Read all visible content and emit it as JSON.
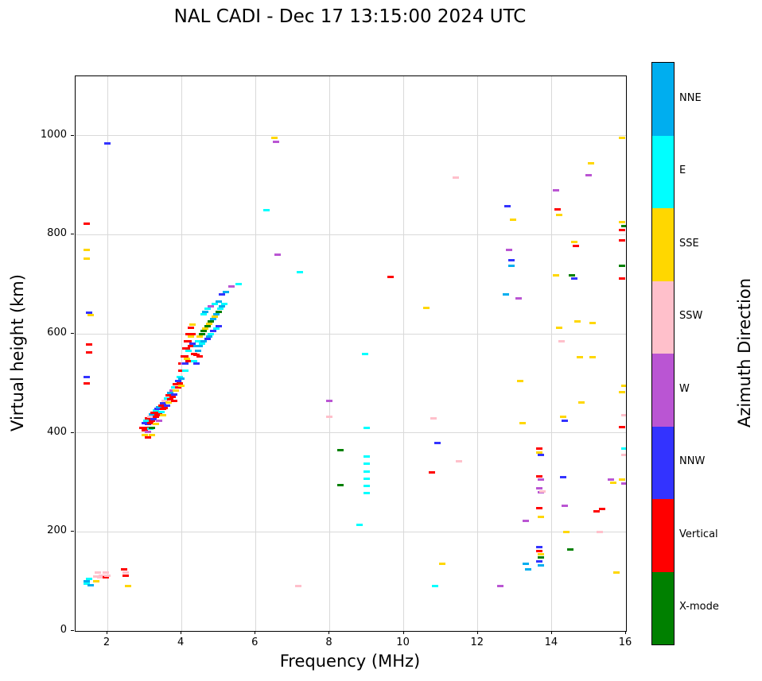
{
  "title": "NAL CADI - Dec 17 13:15:00 2024 UTC",
  "chart_data": {
    "type": "scatter",
    "title": "NAL CADI - Dec 17 13:15:00 2024 UTC",
    "xlabel": "Frequency (MHz)",
    "ylabel": "Virtual height (km)",
    "colorbar_label": "Azimuth Direction",
    "xlim": [
      1.14,
      16
    ],
    "ylim": [
      0,
      1120
    ],
    "xticks": [
      2,
      4,
      6,
      8,
      10,
      12,
      14,
      16
    ],
    "yticks": [
      0,
      200,
      400,
      600,
      800,
      1000
    ],
    "grid": true,
    "marker": "horizontal-dash",
    "legend_position": "right-colorbar",
    "legend": [
      {
        "label": "NNE",
        "color": "#00AEEF"
      },
      {
        "label": "E",
        "color": "#00FFFF"
      },
      {
        "label": "SSE",
        "color": "#FFD700"
      },
      {
        "label": "SSW",
        "color": "#FFC0CB"
      },
      {
        "label": "W",
        "color": "#BA55D3"
      },
      {
        "label": "NNW",
        "color": "#3333FF"
      },
      {
        "label": "Vertical",
        "color": "#FF0000"
      },
      {
        "label": "X-mode",
        "color": "#008000"
      }
    ],
    "points": [
      [
        1.45,
        100,
        "NNE"
      ],
      [
        1.45,
        95,
        "E"
      ],
      [
        1.5,
        105,
        "E"
      ],
      [
        1.55,
        92,
        "NNE"
      ],
      [
        1.7,
        110,
        "SSW"
      ],
      [
        1.7,
        100,
        "SSE"
      ],
      [
        1.75,
        118,
        "SSW"
      ],
      [
        1.8,
        108,
        "SSW"
      ],
      [
        1.85,
        112,
        "SSW"
      ],
      [
        1.95,
        118,
        "SSW"
      ],
      [
        1.95,
        108,
        "Vertical"
      ],
      [
        2.0,
        112,
        "SSW"
      ],
      [
        2.45,
        125,
        "Vertical"
      ],
      [
        2.5,
        118,
        "SSW"
      ],
      [
        2.5,
        112,
        "Vertical"
      ],
      [
        2.55,
        90,
        "SSE"
      ],
      [
        1.45,
        822,
        "Vertical"
      ],
      [
        1.45,
        770,
        "SSE"
      ],
      [
        1.45,
        752,
        "SSE"
      ],
      [
        1.5,
        642,
        "NNW"
      ],
      [
        1.55,
        638,
        "SSE"
      ],
      [
        1.5,
        578,
        "Vertical"
      ],
      [
        1.5,
        562,
        "Vertical"
      ],
      [
        1.45,
        512,
        "NNW"
      ],
      [
        1.45,
        500,
        "Vertical"
      ],
      [
        2.0,
        985,
        "NNW"
      ],
      [
        2.95,
        410,
        "Vertical"
      ],
      [
        3.0,
        420,
        "NNW"
      ],
      [
        3.0,
        405,
        "Vertical"
      ],
      [
        3.0,
        395,
        "SSE"
      ],
      [
        3.05,
        425,
        "E"
      ],
      [
        3.05,
        410,
        "Vertical"
      ],
      [
        3.1,
        430,
        "Vertical"
      ],
      [
        3.1,
        418,
        "NNW"
      ],
      [
        3.1,
        402,
        "W"
      ],
      [
        3.1,
        390,
        "Vertical"
      ],
      [
        3.15,
        432,
        "SSW"
      ],
      [
        3.15,
        420,
        "Vertical"
      ],
      [
        3.15,
        408,
        "E"
      ],
      [
        3.2,
        438,
        "NNE"
      ],
      [
        3.2,
        425,
        "Vertical"
      ],
      [
        3.2,
        410,
        "X-mode"
      ],
      [
        3.2,
        395,
        "SSE"
      ],
      [
        3.25,
        440,
        "Vertical"
      ],
      [
        3.25,
        428,
        "NNW"
      ],
      [
        3.3,
        445,
        "E"
      ],
      [
        3.3,
        432,
        "Vertical"
      ],
      [
        3.3,
        418,
        "SSE"
      ],
      [
        3.35,
        448,
        "NNW"
      ],
      [
        3.35,
        435,
        "Vertical"
      ],
      [
        3.4,
        452,
        "NNE"
      ],
      [
        3.4,
        440,
        "Vertical"
      ],
      [
        3.4,
        425,
        "W"
      ],
      [
        3.45,
        455,
        "Vertical"
      ],
      [
        3.45,
        442,
        "E"
      ],
      [
        3.5,
        460,
        "NNW"
      ],
      [
        3.5,
        448,
        "Vertical"
      ],
      [
        3.5,
        435,
        "SSE"
      ],
      [
        3.55,
        465,
        "SSW"
      ],
      [
        3.55,
        450,
        "Vertical"
      ],
      [
        3.6,
        470,
        "E"
      ],
      [
        3.6,
        455,
        "NNW"
      ],
      [
        3.65,
        475,
        "Vertical"
      ],
      [
        3.65,
        462,
        "SSE"
      ],
      [
        3.7,
        480,
        "NNE"
      ],
      [
        3.7,
        468,
        "Vertical"
      ],
      [
        3.75,
        485,
        "W"
      ],
      [
        3.75,
        472,
        "Vertical"
      ],
      [
        3.8,
        492,
        "E"
      ],
      [
        3.8,
        478,
        "NNW"
      ],
      [
        3.8,
        465,
        "Vertical"
      ],
      [
        3.85,
        498,
        "Vertical"
      ],
      [
        3.85,
        485,
        "SSE"
      ],
      [
        3.9,
        505,
        "NNW"
      ],
      [
        3.9,
        492,
        "Vertical"
      ],
      [
        3.95,
        512,
        "E"
      ],
      [
        3.95,
        500,
        "Vertical"
      ],
      [
        4.0,
        540,
        "Vertical"
      ],
      [
        4.0,
        525,
        "Vertical"
      ],
      [
        4.0,
        510,
        "NNE"
      ],
      [
        4.0,
        495,
        "SSE"
      ],
      [
        4.05,
        555,
        "Vertical"
      ],
      [
        4.05,
        540,
        "W"
      ],
      [
        4.1,
        570,
        "Vertical"
      ],
      [
        4.1,
        555,
        "Vertical"
      ],
      [
        4.1,
        540,
        "NNW"
      ],
      [
        4.1,
        525,
        "E"
      ],
      [
        4.15,
        585,
        "Vertical"
      ],
      [
        4.15,
        570,
        "Vertical"
      ],
      [
        4.15,
        550,
        "SSE"
      ],
      [
        4.2,
        600,
        "Vertical"
      ],
      [
        4.2,
        585,
        "Vertical"
      ],
      [
        4.2,
        565,
        "E"
      ],
      [
        4.2,
        545,
        "Vertical"
      ],
      [
        4.25,
        612,
        "Vertical"
      ],
      [
        4.25,
        595,
        "SSE"
      ],
      [
        4.25,
        575,
        "Vertical"
      ],
      [
        4.3,
        618,
        "SSE"
      ],
      [
        4.3,
        600,
        "Vertical"
      ],
      [
        4.3,
        580,
        "NNW"
      ],
      [
        4.35,
        560,
        "Vertical"
      ],
      [
        4.35,
        545,
        "E"
      ],
      [
        4.4,
        575,
        "NNE"
      ],
      [
        4.4,
        558,
        "Vertical"
      ],
      [
        4.4,
        540,
        "NNW"
      ],
      [
        4.45,
        585,
        "E"
      ],
      [
        4.45,
        565,
        "NNE"
      ],
      [
        4.5,
        595,
        "SSE"
      ],
      [
        4.5,
        575,
        "NNE"
      ],
      [
        4.5,
        555,
        "Vertical"
      ],
      [
        4.55,
        600,
        "X-mode"
      ],
      [
        4.55,
        580,
        "E"
      ],
      [
        4.6,
        640,
        "E"
      ],
      [
        4.6,
        605,
        "X-mode"
      ],
      [
        4.6,
        585,
        "NNE"
      ],
      [
        4.65,
        645,
        "NNE"
      ],
      [
        4.65,
        610,
        "SSE"
      ],
      [
        4.7,
        650,
        "E"
      ],
      [
        4.7,
        615,
        "X-mode"
      ],
      [
        4.7,
        590,
        "NNW"
      ],
      [
        4.75,
        620,
        "SSE"
      ],
      [
        4.75,
        595,
        "NNE"
      ],
      [
        4.8,
        655,
        "W"
      ],
      [
        4.8,
        625,
        "X-mode"
      ],
      [
        4.8,
        600,
        "E"
      ],
      [
        4.85,
        630,
        "NNE"
      ],
      [
        4.85,
        605,
        "NNW"
      ],
      [
        4.9,
        660,
        "E"
      ],
      [
        4.9,
        635,
        "SSE"
      ],
      [
        4.95,
        640,
        "NNE"
      ],
      [
        4.95,
        610,
        "E"
      ],
      [
        5.0,
        665,
        "NNE"
      ],
      [
        5.0,
        645,
        "X-mode"
      ],
      [
        5.0,
        615,
        "NNW"
      ],
      [
        5.05,
        650,
        "E"
      ],
      [
        5.1,
        680,
        "NNW"
      ],
      [
        5.1,
        655,
        "NNE"
      ],
      [
        5.15,
        660,
        "E"
      ],
      [
        5.2,
        685,
        "NNE"
      ],
      [
        5.35,
        695,
        "W"
      ],
      [
        5.55,
        700,
        "E"
      ],
      [
        6.3,
        850,
        "E"
      ],
      [
        6.5,
        995,
        "SSE"
      ],
      [
        6.55,
        988,
        "W"
      ],
      [
        6.6,
        760,
        "W"
      ],
      [
        7.2,
        725,
        "E"
      ],
      [
        7.15,
        90,
        "SSW"
      ],
      [
        8.0,
        465,
        "W"
      ],
      [
        8.0,
        432,
        "SSW"
      ],
      [
        8.3,
        365,
        "X-mode"
      ],
      [
        8.3,
        295,
        "X-mode"
      ],
      [
        8.8,
        215,
        "E"
      ],
      [
        8.95,
        560,
        "E"
      ],
      [
        9.0,
        410,
        "E"
      ],
      [
        9.0,
        352,
        "E"
      ],
      [
        9.0,
        338,
        "E"
      ],
      [
        9.0,
        322,
        "E"
      ],
      [
        9.0,
        308,
        "E"
      ],
      [
        9.0,
        293,
        "E"
      ],
      [
        9.0,
        278,
        "E"
      ],
      [
        9.65,
        715,
        "Vertical"
      ],
      [
        10.6,
        653,
        "SSE"
      ],
      [
        10.75,
        320,
        "Vertical"
      ],
      [
        10.8,
        430,
        "SSW"
      ],
      [
        10.9,
        380,
        "NNW"
      ],
      [
        10.85,
        90,
        "E"
      ],
      [
        11.05,
        135,
        "SSE"
      ],
      [
        11.4,
        915,
        "SSW"
      ],
      [
        11.5,
        342,
        "SSW"
      ],
      [
        12.6,
        90,
        "W"
      ],
      [
        12.75,
        680,
        "NNE"
      ],
      [
        12.8,
        858,
        "NNW"
      ],
      [
        12.85,
        770,
        "W"
      ],
      [
        12.9,
        748,
        "NNW"
      ],
      [
        12.9,
        738,
        "NNE"
      ],
      [
        12.95,
        830,
        "SSE"
      ],
      [
        13.1,
        672,
        "W"
      ],
      [
        13.15,
        505,
        "SSE"
      ],
      [
        13.2,
        420,
        "SSE"
      ],
      [
        13.3,
        222,
        "W"
      ],
      [
        13.3,
        135,
        "NNE"
      ],
      [
        13.35,
        125,
        "NNE"
      ],
      [
        13.65,
        368,
        "Vertical"
      ],
      [
        13.65,
        360,
        "SSE"
      ],
      [
        13.7,
        355,
        "NNW"
      ],
      [
        13.65,
        312,
        "Vertical"
      ],
      [
        13.7,
        305,
        "W"
      ],
      [
        13.65,
        288,
        "W"
      ],
      [
        13.7,
        280,
        "W"
      ],
      [
        13.75,
        282,
        "SSW"
      ],
      [
        13.65,
        248,
        "Vertical"
      ],
      [
        13.7,
        230,
        "SSE"
      ],
      [
        13.65,
        170,
        "NNW"
      ],
      [
        13.65,
        162,
        "Vertical"
      ],
      [
        13.7,
        155,
        "SSE"
      ],
      [
        13.7,
        148,
        "X-mode"
      ],
      [
        13.65,
        140,
        "NNW"
      ],
      [
        13.7,
        132,
        "NNE"
      ],
      [
        14.1,
        890,
        "W"
      ],
      [
        14.15,
        852,
        "Vertical"
      ],
      [
        14.2,
        840,
        "SSE"
      ],
      [
        14.1,
        718,
        "SSE"
      ],
      [
        14.2,
        612,
        "SSE"
      ],
      [
        14.25,
        585,
        "SSW"
      ],
      [
        14.3,
        432,
        "SSE"
      ],
      [
        14.35,
        425,
        "NNW"
      ],
      [
        14.3,
        310,
        "NNW"
      ],
      [
        14.35,
        252,
        "W"
      ],
      [
        14.4,
        200,
        "SSE"
      ],
      [
        14.5,
        165,
        "X-mode"
      ],
      [
        14.55,
        718,
        "X-mode"
      ],
      [
        14.6,
        712,
        "NNW"
      ],
      [
        14.6,
        785,
        "SSE"
      ],
      [
        14.65,
        778,
        "Vertical"
      ],
      [
        14.7,
        625,
        "SSE"
      ],
      [
        14.75,
        552,
        "SSE"
      ],
      [
        14.8,
        462,
        "SSE"
      ],
      [
        15.0,
        920,
        "W"
      ],
      [
        15.05,
        945,
        "SSE"
      ],
      [
        15.1,
        622,
        "SSE"
      ],
      [
        15.1,
        553,
        "SSE"
      ],
      [
        15.2,
        242,
        "Vertical"
      ],
      [
        15.35,
        246,
        "Vertical"
      ],
      [
        15.3,
        200,
        "SSW"
      ],
      [
        15.6,
        305,
        "W"
      ],
      [
        15.65,
        300,
        "SSE"
      ],
      [
        15.9,
        995,
        "SSE"
      ],
      [
        15.9,
        825,
        "SSE"
      ],
      [
        15.95,
        818,
        "X-mode"
      ],
      [
        15.9,
        810,
        "Vertical"
      ],
      [
        15.9,
        788,
        "Vertical"
      ],
      [
        15.9,
        738,
        "X-mode"
      ],
      [
        15.9,
        712,
        "Vertical"
      ],
      [
        15.95,
        495,
        "SSE"
      ],
      [
        15.9,
        482,
        "SSE"
      ],
      [
        15.95,
        435,
        "SSW"
      ],
      [
        15.9,
        412,
        "Vertical"
      ],
      [
        15.95,
        368,
        "E"
      ],
      [
        15.95,
        355,
        "SSW"
      ],
      [
        15.9,
        305,
        "SSE"
      ],
      [
        15.95,
        298,
        "W"
      ],
      [
        15.75,
        118,
        "SSE"
      ]
    ]
  }
}
